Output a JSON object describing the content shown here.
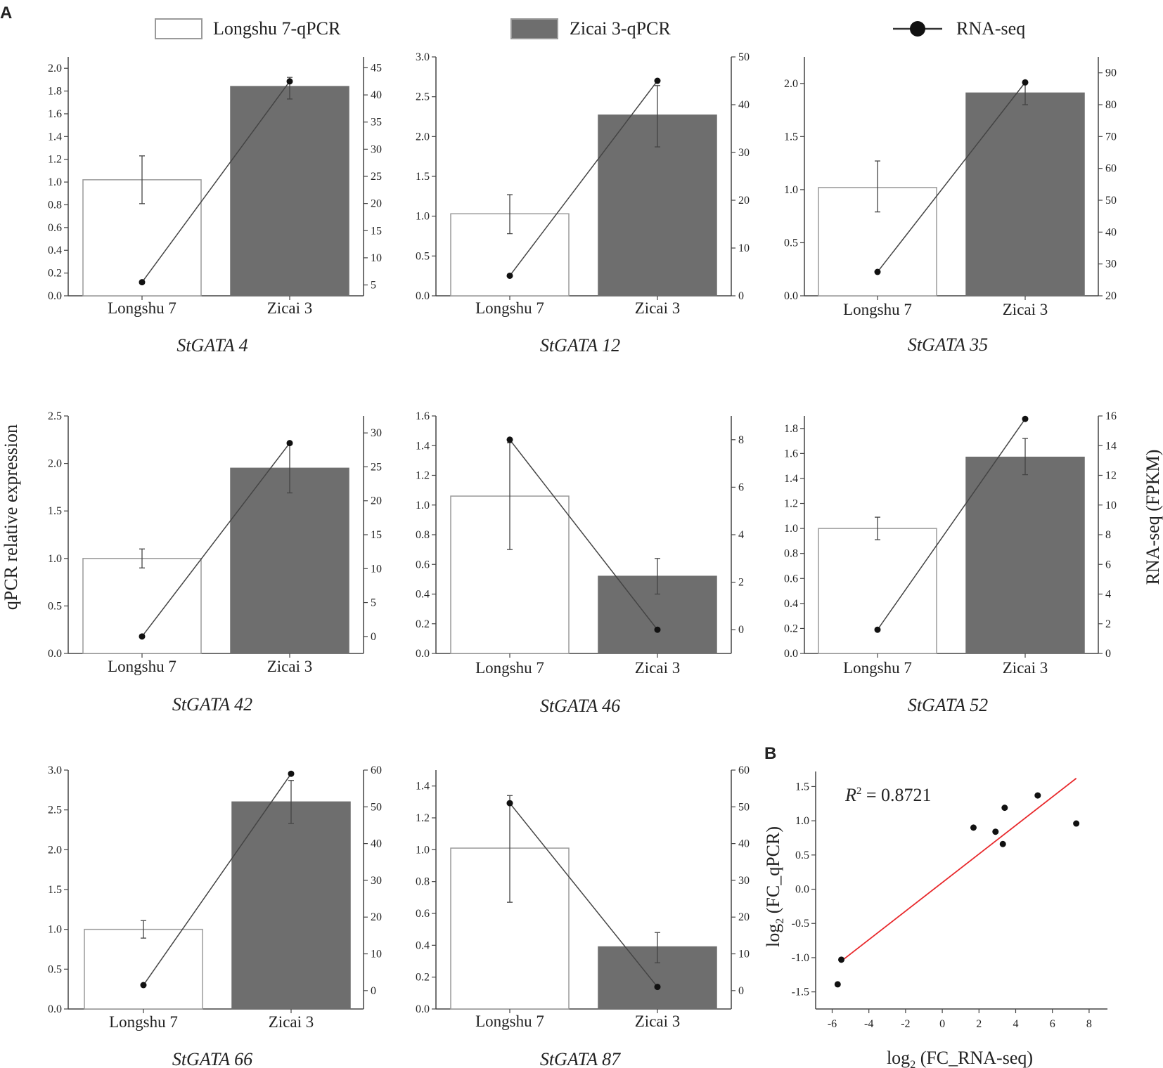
{
  "figure": {
    "panel_a_label": "A",
    "panel_b_label": "B",
    "left_axis_label": "qPCR relative expression",
    "right_axis_label": "RNA-seq (FPKM)"
  },
  "legend": {
    "items": [
      {
        "label": "Longshu 7-qPCR",
        "kind": "bar-open"
      },
      {
        "label": "Zicai 3-qPCR",
        "kind": "bar-filled"
      },
      {
        "label": "RNA-seq",
        "kind": "line-marker"
      }
    ]
  },
  "colors": {
    "bar_open_fill": "#ffffff",
    "bar_open_stroke": "#9a9a9a",
    "bar_filled": "#6e6e6e",
    "axis": "#444444",
    "line": "#444444",
    "marker": "#111111",
    "fit_line": "#e8282b"
  },
  "chart_data": [
    {
      "type": "bar",
      "title": "StGATA 4",
      "categories": [
        "Longshu 7",
        "Zicai 3"
      ],
      "series": [
        {
          "name": "qPCR",
          "values": [
            1.02,
            1.84
          ],
          "errors": [
            [
              0.81,
              1.23
            ],
            [
              1.73,
              1.92
            ]
          ]
        },
        {
          "name": "RNA-seq",
          "axis": "right",
          "values": [
            5.5,
            42.5
          ]
        }
      ],
      "ylim": [
        0,
        2.1
      ],
      "yticks": [
        "0.0",
        "0.2",
        "0.4",
        "0.6",
        "0.8",
        "1.0",
        "1.2",
        "1.4",
        "1.6",
        "1.8",
        "2.0"
      ],
      "y2lim": [
        3,
        47
      ],
      "y2ticks": [
        "5",
        "10",
        "15",
        "20",
        "25",
        "30",
        "35",
        "40",
        "45"
      ]
    },
    {
      "type": "bar",
      "title": "StGATA 12",
      "categories": [
        "Longshu 7",
        "Zicai 3"
      ],
      "series": [
        {
          "name": "qPCR",
          "values": [
            1.03,
            2.27
          ],
          "errors": [
            [
              0.78,
              1.27
            ],
            [
              1.87,
              2.64
            ]
          ]
        },
        {
          "name": "RNA-seq",
          "axis": "right",
          "values": [
            4.2,
            45
          ]
        }
      ],
      "ylim": [
        0,
        3.0
      ],
      "yticks": [
        "0.0",
        "0.5",
        "1.0",
        "1.5",
        "2.0",
        "2.5",
        "3.0"
      ],
      "y2lim": [
        0,
        50
      ],
      "y2ticks": [
        "0",
        "10",
        "20",
        "30",
        "40",
        "50"
      ]
    },
    {
      "type": "bar",
      "title": "StGATA 35",
      "categories": [
        "Longshu 7",
        "Zicai 3"
      ],
      "series": [
        {
          "name": "qPCR",
          "values": [
            1.02,
            1.91
          ],
          "errors": [
            [
              0.79,
              1.27
            ],
            [
              1.8,
              2.0
            ]
          ]
        },
        {
          "name": "RNA-seq",
          "axis": "right",
          "values": [
            27.5,
            87
          ]
        }
      ],
      "ylim": [
        0,
        2.25
      ],
      "yticks": [
        "0.0",
        "0.5",
        "1.0",
        "1.5",
        "2.0"
      ],
      "y2lim": [
        20,
        95
      ],
      "y2ticks": [
        "20",
        "30",
        "40",
        "50",
        "60",
        "70",
        "80",
        "90"
      ]
    },
    {
      "type": "bar",
      "title": "StGATA 42",
      "categories": [
        "Longshu 7",
        "Zicai 3"
      ],
      "series": [
        {
          "name": "qPCR",
          "values": [
            1.0,
            1.95
          ],
          "errors": [
            [
              0.9,
              1.1
            ],
            [
              1.69,
              2.2
            ]
          ]
        },
        {
          "name": "RNA-seq",
          "axis": "right",
          "values": [
            0,
            28.5
          ]
        }
      ],
      "ylim": [
        0,
        2.5
      ],
      "yticks": [
        "0.0",
        "0.5",
        "1.0",
        "1.5",
        "2.0",
        "2.5"
      ],
      "y2lim": [
        -2.5,
        32.5
      ],
      "y2ticks": [
        "0",
        "5",
        "10",
        "15",
        "20",
        "25",
        "30"
      ]
    },
    {
      "type": "bar",
      "title": "StGATA 46",
      "categories": [
        "Longshu 7",
        "Zicai 3"
      ],
      "series": [
        {
          "name": "qPCR",
          "values": [
            1.06,
            0.52
          ],
          "errors": [
            [
              0.7,
              1.42
            ],
            [
              0.4,
              0.64
            ]
          ]
        },
        {
          "name": "RNA-seq",
          "axis": "right",
          "values": [
            8.0,
            0
          ]
        }
      ],
      "ylim": [
        0,
        1.6
      ],
      "yticks": [
        "0.0",
        "0.2",
        "0.4",
        "0.6",
        "0.8",
        "1.0",
        "1.2",
        "1.4",
        "1.6"
      ],
      "y2lim": [
        -1,
        9
      ],
      "y2ticks": [
        "0",
        "2",
        "4",
        "6",
        "8"
      ]
    },
    {
      "type": "bar",
      "title": "StGATA 52",
      "categories": [
        "Longshu 7",
        "Zicai 3"
      ],
      "series": [
        {
          "name": "qPCR",
          "values": [
            1.0,
            1.57
          ],
          "errors": [
            [
              0.91,
              1.09
            ],
            [
              1.43,
              1.72
            ]
          ]
        },
        {
          "name": "RNA-seq",
          "axis": "right",
          "values": [
            1.6,
            15.8
          ]
        }
      ],
      "ylim": [
        0,
        1.9
      ],
      "yticks": [
        "0.0",
        "0.2",
        "0.4",
        "0.6",
        "0.8",
        "1.0",
        "1.2",
        "1.4",
        "1.6",
        "1.8"
      ],
      "y2lim": [
        0,
        16
      ],
      "y2ticks": [
        "0",
        "2",
        "4",
        "6",
        "8",
        "10",
        "12",
        "14",
        "16"
      ]
    },
    {
      "type": "bar",
      "title": "StGATA 66",
      "categories": [
        "Longshu 7",
        "Zicai 3"
      ],
      "series": [
        {
          "name": "qPCR",
          "values": [
            1.0,
            2.6
          ],
          "errors": [
            [
              0.89,
              1.11
            ],
            [
              2.33,
              2.87
            ]
          ]
        },
        {
          "name": "RNA-seq",
          "axis": "right",
          "values": [
            1.5,
            59
          ]
        }
      ],
      "ylim": [
        0,
        3.0
      ],
      "yticks": [
        "0.0",
        "0.5",
        "1.0",
        "1.5",
        "2.0",
        "2.5",
        "3.0"
      ],
      "y2lim": [
        -5,
        60
      ],
      "y2ticks": [
        "0",
        "10",
        "20",
        "30",
        "40",
        "50",
        "60"
      ]
    },
    {
      "type": "bar",
      "title": "StGATA 87",
      "categories": [
        "Longshu 7",
        "Zicai 3"
      ],
      "series": [
        {
          "name": "qPCR",
          "values": [
            1.01,
            0.39
          ],
          "errors": [
            [
              0.67,
              1.34
            ],
            [
              0.29,
              0.48
            ]
          ]
        },
        {
          "name": "RNA-seq",
          "axis": "right",
          "values": [
            51,
            1
          ]
        }
      ],
      "ylim": [
        0,
        1.5
      ],
      "yticks": [
        "0.0",
        "0.2",
        "0.4",
        "0.6",
        "0.8",
        "1.0",
        "1.2",
        "1.4"
      ],
      "y2lim": [
        -5,
        60
      ],
      "y2ticks": [
        "0",
        "10",
        "20",
        "30",
        "40",
        "50",
        "60"
      ]
    },
    {
      "type": "scatter",
      "title": "",
      "annotation_prefix": "R",
      "annotation_sup": "2",
      "annotation_value": " = 0.8721",
      "xlabel_pre": "log",
      "xlabel_sub": "2",
      "xlabel_post": " (FC_RNA-seq)",
      "ylabel_pre": "log",
      "ylabel_sub": "2",
      "ylabel_post": " (FC_qPCR)",
      "points": [
        [
          -5.7,
          -1.39
        ],
        [
          -5.5,
          -1.03
        ],
        [
          1.7,
          0.9
        ],
        [
          2.9,
          0.84
        ],
        [
          3.3,
          0.66
        ],
        [
          3.4,
          1.19
        ],
        [
          5.2,
          1.37
        ],
        [
          7.3,
          0.96
        ]
      ],
      "fit": {
        "x": [
          -5.5,
          7.3
        ],
        "y": [
          -1.05,
          1.62
        ]
      },
      "xlim": [
        -6.9,
        9.0
      ],
      "ylim": [
        -1.75,
        1.72
      ],
      "xticks": [
        "-6",
        "-4",
        "-2",
        "0",
        "2",
        "4",
        "6",
        "8"
      ],
      "yticks": [
        "-1.5",
        "-1.0",
        "-0.5",
        "0.0",
        "0.5",
        "1.0",
        "1.5"
      ]
    }
  ]
}
